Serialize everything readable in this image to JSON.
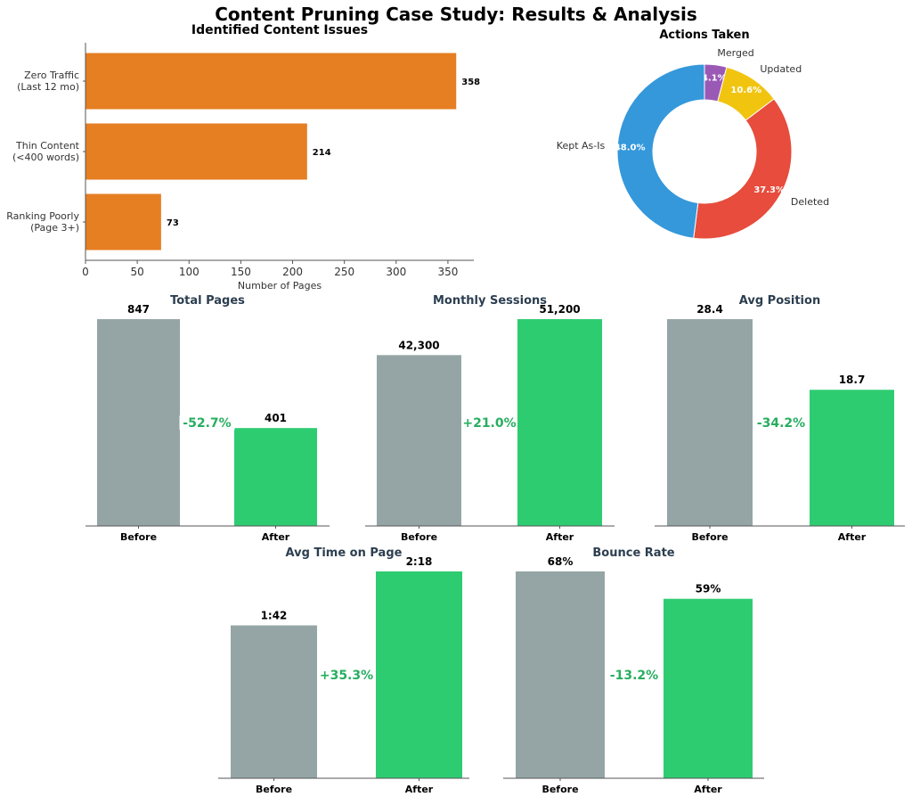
{
  "title": "Content Pruning Case Study: Results & Analysis",
  "colors": {
    "orange": "#e67e22",
    "before": "#95a5a6",
    "after": "#2ecc71",
    "change": "#27ae60",
    "panel_title": "#2c3e50"
  },
  "chart_data": [
    {
      "type": "bar",
      "orientation": "horizontal",
      "title": "Identified Content Issues",
      "xlabel": "Number of Pages",
      "categories": [
        "Zero Traffic\n(Last 12 mo)",
        "Thin Content\n(<400 words)",
        "Ranking Poorly\n(Page 3+)"
      ],
      "values": [
        358,
        214,
        73
      ],
      "data_labels": [
        "358",
        "214",
        "73"
      ],
      "xlim": [
        0,
        375
      ],
      "xticks": [
        0,
        50,
        100,
        150,
        200,
        250,
        300,
        350
      ],
      "grid": false
    },
    {
      "type": "pie",
      "donut": true,
      "title": "Actions Taken",
      "labels": [
        "Merged",
        "Updated",
        "Deleted",
        "Kept As-Is"
      ],
      "values": [
        4.1,
        10.6,
        37.3,
        48.0
      ],
      "pct_labels": [
        "4.1%",
        "10.6%",
        "37.3%",
        "48.0%"
      ],
      "colors": [
        "#9b59b6",
        "#f1c40f",
        "#e74c3c",
        "#3498db"
      ]
    },
    {
      "type": "bar",
      "title": "Total Pages",
      "categories": [
        "Before",
        "After"
      ],
      "values": [
        847,
        401
      ],
      "data_labels": [
        "847",
        "401"
      ],
      "change": "-52.7%"
    },
    {
      "type": "bar",
      "title": "Monthly Sessions",
      "categories": [
        "Before",
        "After"
      ],
      "values": [
        42300,
        51200
      ],
      "data_labels": [
        "42,300",
        "51,200"
      ],
      "change": "+21.0%"
    },
    {
      "type": "bar",
      "title": "Avg Position",
      "categories": [
        "Before",
        "After"
      ],
      "values": [
        28.4,
        18.7
      ],
      "data_labels": [
        "28.4",
        "18.7"
      ],
      "change": "-34.2%"
    },
    {
      "type": "bar",
      "title": "Avg Time on Page",
      "categories": [
        "Before",
        "After"
      ],
      "values": [
        102,
        138
      ],
      "data_labels": [
        "1:42",
        "2:18"
      ],
      "change": "+35.3%"
    },
    {
      "type": "bar",
      "title": "Bounce Rate",
      "categories": [
        "Before",
        "After"
      ],
      "values": [
        68,
        59
      ],
      "data_labels": [
        "68%",
        "59%"
      ],
      "change": "-13.2%"
    }
  ]
}
